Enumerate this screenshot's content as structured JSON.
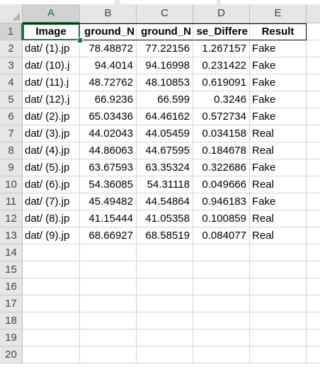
{
  "column_headers": [
    "A",
    "B",
    "C",
    "D",
    "E"
  ],
  "row_numbers": [
    "1",
    "2",
    "3",
    "4",
    "5",
    "6",
    "7",
    "8",
    "9",
    "10",
    "11",
    "12",
    "13",
    "14",
    "15",
    "16",
    "17",
    "18",
    "19",
    "20"
  ],
  "sheet_header": {
    "A": "Image",
    "B": "ground_N",
    "C": "ground_N",
    "D": "se_Differe",
    "E": "Result"
  },
  "rows": [
    {
      "A": "dat/ (1).jp",
      "B": "78.48872",
      "C": "77.22156",
      "D": "1.267157",
      "E": "Fake"
    },
    {
      "A": "dat/ (10).j",
      "B": "94.4014",
      "C": "94.16998",
      "D": "0.231422",
      "E": "Fake"
    },
    {
      "A": "dat/ (11).j",
      "B": "48.72762",
      "C": "48.10853",
      "D": "0.619091",
      "E": "Fake"
    },
    {
      "A": "dat/ (12).j",
      "B": "66.9236",
      "C": "66.599",
      "D": "0.3246",
      "E": "Fake"
    },
    {
      "A": "dat/ (2).jp",
      "B": "65.03436",
      "C": "64.46162",
      "D": "0.572734",
      "E": "Fake"
    },
    {
      "A": "dat/ (3).jp",
      "B": "44.02043",
      "C": "44.05459",
      "D": "0.034158",
      "E": "Real"
    },
    {
      "A": "dat/ (4).jp",
      "B": "44.86063",
      "C": "44.67595",
      "D": "0.184678",
      "E": "Real"
    },
    {
      "A": "dat/ (5).jp",
      "B": "63.67593",
      "C": "63.35324",
      "D": "0.322686",
      "E": "Fake"
    },
    {
      "A": "dat/ (6).jp",
      "B": "54.36085",
      "C": "54.31118",
      "D": "0.049666",
      "E": "Real"
    },
    {
      "A": "dat/ (7).jp",
      "B": "45.49482",
      "C": "44.54864",
      "D": "0.946183",
      "E": "Fake"
    },
    {
      "A": "dat/ (8).jp",
      "B": "41.15444",
      "C": "41.05358",
      "D": "0.100859",
      "E": "Real"
    },
    {
      "A": "dat/ (9).jp",
      "B": "68.66927",
      "C": "68.58519",
      "D": "0.084077",
      "E": "Real"
    }
  ],
  "selected_cell": "A1",
  "colors": {
    "selection": "#217346",
    "header_bg": "#e6e6e6"
  }
}
